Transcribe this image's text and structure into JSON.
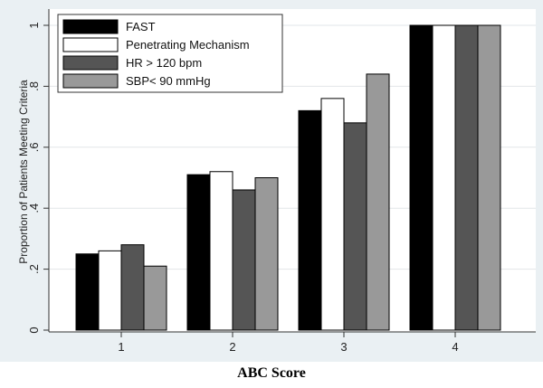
{
  "caption": "ABC Score",
  "colors": {
    "outer_bg": "#eaf0f3",
    "plot_bg": "#ffffff",
    "grid": "#e2e6e8",
    "edge": "#000000"
  },
  "chart_data": {
    "type": "bar",
    "categories": [
      "1",
      "2",
      "3",
      "4"
    ],
    "ylabel": "Proportion of Patients Meeting Criteria",
    "xlabel": "",
    "ylim": [
      0,
      1.03
    ],
    "yticks": [
      0,
      0.2,
      0.4,
      0.6,
      0.8,
      1
    ],
    "ytick_labels": [
      "0",
      ".2",
      ".4",
      ".6",
      ".8",
      "1"
    ],
    "grid": true,
    "legend_position": "top-left",
    "series": [
      {
        "name": "FAST",
        "color": "#000000",
        "values": [
          0.25,
          0.51,
          0.72,
          1.0
        ]
      },
      {
        "name": "Penetrating Mechanism",
        "color": "#ffffff",
        "values": [
          0.26,
          0.52,
          0.76,
          1.0
        ]
      },
      {
        "name": "HR > 120 bpm",
        "color": "#555555",
        "values": [
          0.28,
          0.46,
          0.68,
          1.0
        ]
      },
      {
        "name": "SBP< 90 mmHg",
        "color": "#999999",
        "values": [
          0.21,
          0.5,
          0.84,
          1.0
        ]
      }
    ]
  }
}
